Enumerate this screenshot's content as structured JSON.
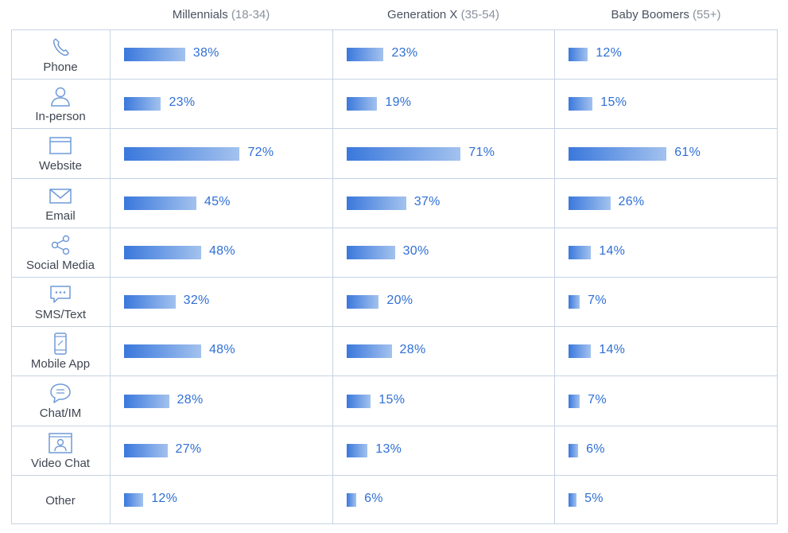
{
  "chart_data": {
    "type": "bar",
    "orientation": "horizontal",
    "layout": "table",
    "grid": true,
    "categories": [
      "Phone",
      "In-person",
      "Website",
      "Email",
      "Social Media",
      "SMS/Text",
      "Mobile App",
      "Chat/IM",
      "Video Chat",
      "Other"
    ],
    "series": [
      {
        "name": "Millennials",
        "name_suffix": "(18-34)",
        "values": [
          38,
          23,
          72,
          45,
          48,
          32,
          48,
          28,
          27,
          12
        ]
      },
      {
        "name": "Generation X",
        "name_suffix": "(35-54)",
        "values": [
          23,
          19,
          71,
          37,
          30,
          20,
          28,
          15,
          13,
          6
        ]
      },
      {
        "name": "Baby Boomers",
        "name_suffix": "(55+)",
        "values": [
          12,
          15,
          61,
          26,
          14,
          7,
          14,
          7,
          6,
          5
        ]
      }
    ],
    "value_suffix": "%",
    "icons": [
      "phone-icon",
      "person-icon",
      "browser-window-icon",
      "envelope-icon",
      "share-icon",
      "speech-bubble-dots-icon",
      "mobile-phone-icon",
      "chat-bubble-lines-icon",
      "video-chat-icon",
      ""
    ],
    "colors": {
      "bar_start": "#3a78dc",
      "bar_end": "#a3c2ee",
      "value_text": "#2f6fd6",
      "grid_line": "#c6d3e3",
      "icon": "#6f9ad8"
    }
  }
}
